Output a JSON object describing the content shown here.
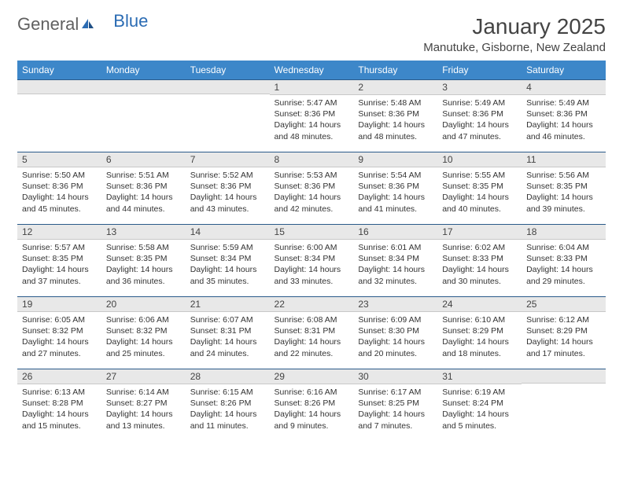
{
  "logo": {
    "text_gray": "General",
    "text_blue": "Blue"
  },
  "title": "January 2025",
  "location": "Manutuke, Gisborne, New Zealand",
  "colors": {
    "header_bg": "#3d87c9",
    "header_text": "#ffffff",
    "daybar_bg": "#e8e8e8",
    "daybar_border_top": "#2a5a8a",
    "logo_gray": "#606060",
    "logo_blue": "#2a6bb3"
  },
  "weekdays": [
    "Sunday",
    "Monday",
    "Tuesday",
    "Wednesday",
    "Thursday",
    "Friday",
    "Saturday"
  ],
  "calendar_layout": {
    "first_weekday_index": 3,
    "days_in_month": 31,
    "rows": 5,
    "cols": 7
  },
  "days": {
    "1": {
      "sunrise": "5:47 AM",
      "sunset": "8:36 PM",
      "daylight": "14 hours and 48 minutes."
    },
    "2": {
      "sunrise": "5:48 AM",
      "sunset": "8:36 PM",
      "daylight": "14 hours and 48 minutes."
    },
    "3": {
      "sunrise": "5:49 AM",
      "sunset": "8:36 PM",
      "daylight": "14 hours and 47 minutes."
    },
    "4": {
      "sunrise": "5:49 AM",
      "sunset": "8:36 PM",
      "daylight": "14 hours and 46 minutes."
    },
    "5": {
      "sunrise": "5:50 AM",
      "sunset": "8:36 PM",
      "daylight": "14 hours and 45 minutes."
    },
    "6": {
      "sunrise": "5:51 AM",
      "sunset": "8:36 PM",
      "daylight": "14 hours and 44 minutes."
    },
    "7": {
      "sunrise": "5:52 AM",
      "sunset": "8:36 PM",
      "daylight": "14 hours and 43 minutes."
    },
    "8": {
      "sunrise": "5:53 AM",
      "sunset": "8:36 PM",
      "daylight": "14 hours and 42 minutes."
    },
    "9": {
      "sunrise": "5:54 AM",
      "sunset": "8:36 PM",
      "daylight": "14 hours and 41 minutes."
    },
    "10": {
      "sunrise": "5:55 AM",
      "sunset": "8:35 PM",
      "daylight": "14 hours and 40 minutes."
    },
    "11": {
      "sunrise": "5:56 AM",
      "sunset": "8:35 PM",
      "daylight": "14 hours and 39 minutes."
    },
    "12": {
      "sunrise": "5:57 AM",
      "sunset": "8:35 PM",
      "daylight": "14 hours and 37 minutes."
    },
    "13": {
      "sunrise": "5:58 AM",
      "sunset": "8:35 PM",
      "daylight": "14 hours and 36 minutes."
    },
    "14": {
      "sunrise": "5:59 AM",
      "sunset": "8:34 PM",
      "daylight": "14 hours and 35 minutes."
    },
    "15": {
      "sunrise": "6:00 AM",
      "sunset": "8:34 PM",
      "daylight": "14 hours and 33 minutes."
    },
    "16": {
      "sunrise": "6:01 AM",
      "sunset": "8:34 PM",
      "daylight": "14 hours and 32 minutes."
    },
    "17": {
      "sunrise": "6:02 AM",
      "sunset": "8:33 PM",
      "daylight": "14 hours and 30 minutes."
    },
    "18": {
      "sunrise": "6:04 AM",
      "sunset": "8:33 PM",
      "daylight": "14 hours and 29 minutes."
    },
    "19": {
      "sunrise": "6:05 AM",
      "sunset": "8:32 PM",
      "daylight": "14 hours and 27 minutes."
    },
    "20": {
      "sunrise": "6:06 AM",
      "sunset": "8:32 PM",
      "daylight": "14 hours and 25 minutes."
    },
    "21": {
      "sunrise": "6:07 AM",
      "sunset": "8:31 PM",
      "daylight": "14 hours and 24 minutes."
    },
    "22": {
      "sunrise": "6:08 AM",
      "sunset": "8:31 PM",
      "daylight": "14 hours and 22 minutes."
    },
    "23": {
      "sunrise": "6:09 AM",
      "sunset": "8:30 PM",
      "daylight": "14 hours and 20 minutes."
    },
    "24": {
      "sunrise": "6:10 AM",
      "sunset": "8:29 PM",
      "daylight": "14 hours and 18 minutes."
    },
    "25": {
      "sunrise": "6:12 AM",
      "sunset": "8:29 PM",
      "daylight": "14 hours and 17 minutes."
    },
    "26": {
      "sunrise": "6:13 AM",
      "sunset": "8:28 PM",
      "daylight": "14 hours and 15 minutes."
    },
    "27": {
      "sunrise": "6:14 AM",
      "sunset": "8:27 PM",
      "daylight": "14 hours and 13 minutes."
    },
    "28": {
      "sunrise": "6:15 AM",
      "sunset": "8:26 PM",
      "daylight": "14 hours and 11 minutes."
    },
    "29": {
      "sunrise": "6:16 AM",
      "sunset": "8:26 PM",
      "daylight": "14 hours and 9 minutes."
    },
    "30": {
      "sunrise": "6:17 AM",
      "sunset": "8:25 PM",
      "daylight": "14 hours and 7 minutes."
    },
    "31": {
      "sunrise": "6:19 AM",
      "sunset": "8:24 PM",
      "daylight": "14 hours and 5 minutes."
    }
  },
  "labels": {
    "sunrise_prefix": "Sunrise: ",
    "sunset_prefix": "Sunset: ",
    "daylight_prefix": "Daylight: "
  }
}
